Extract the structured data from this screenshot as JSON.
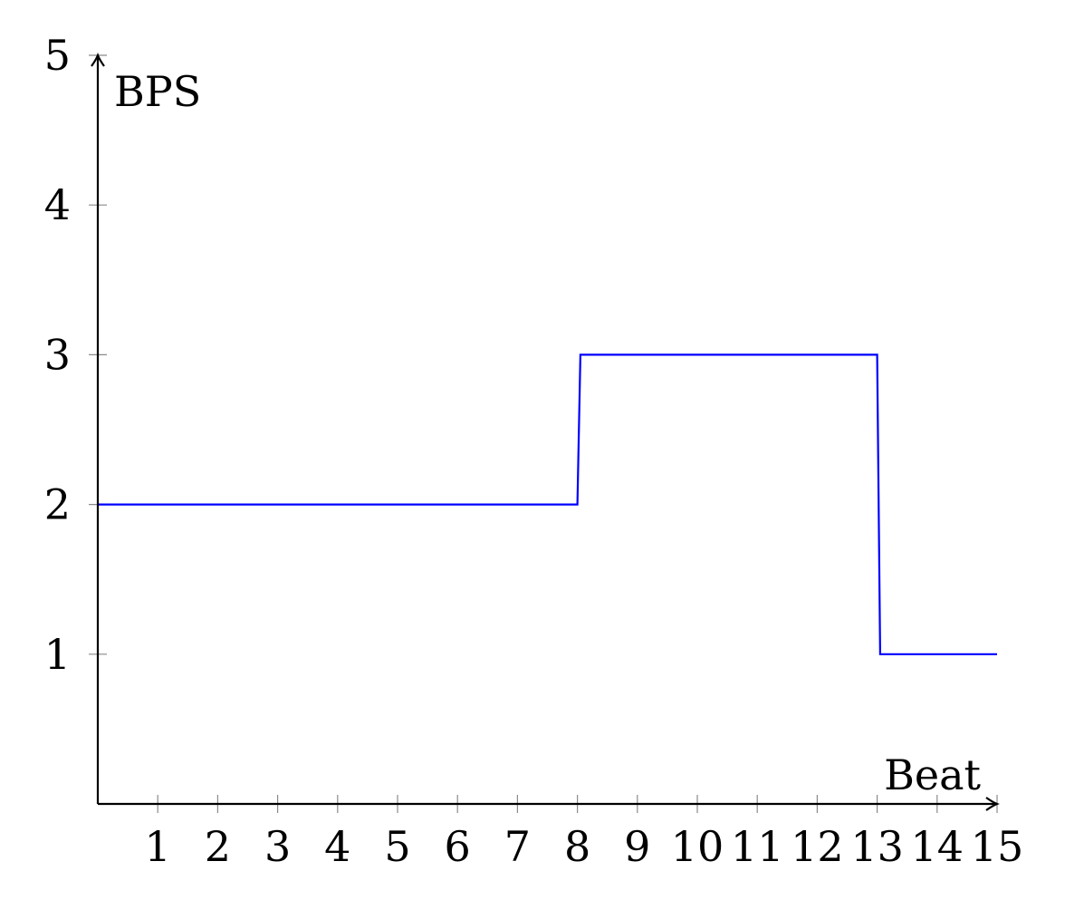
{
  "chart_data": {
    "type": "line",
    "xlabel": "Beat",
    "ylabel": "BPS",
    "xlim": [
      0,
      15
    ],
    "ylim": [
      0,
      5
    ],
    "x_ticks": [
      "1",
      "2",
      "3",
      "4",
      "5",
      "6",
      "7",
      "8",
      "9",
      "10",
      "11",
      "12",
      "13",
      "14",
      "15"
    ],
    "y_ticks": [
      "1",
      "2",
      "3",
      "4",
      "5"
    ],
    "grid": false,
    "series": [
      {
        "color": "#0000ff",
        "points": [
          {
            "x": 0,
            "y": 2
          },
          {
            "x": 8,
            "y": 2
          },
          {
            "x": 8.05,
            "y": 3
          },
          {
            "x": 13,
            "y": 3
          },
          {
            "x": 13.05,
            "y": 1
          },
          {
            "x": 15,
            "y": 1
          }
        ]
      }
    ]
  }
}
